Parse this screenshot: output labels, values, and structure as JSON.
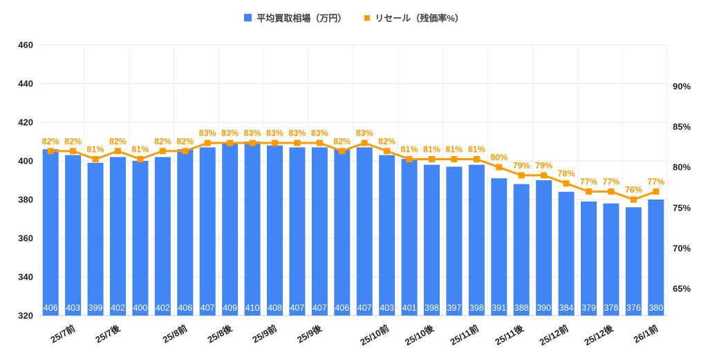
{
  "legend": {
    "bar_label": "平均買取相場（万円）",
    "line_label": "リセール（残価率%）"
  },
  "chart_data": {
    "type": "combo",
    "title": "",
    "legend_position": "top-center",
    "grid": true,
    "x_tick_labels": [
      "25/7前",
      "25/7後",
      "25/8前",
      "25/8後",
      "25/9前",
      "25/9後",
      "25/10前",
      "25/10後",
      "25/11前",
      "25/11後",
      "25/12前",
      "25/12後",
      "26/1前"
    ],
    "x_tick_bar_index": [
      2,
      4,
      7,
      9,
      11,
      13,
      16,
      18,
      20,
      22,
      24,
      26,
      28
    ],
    "series": [
      {
        "name": "平均買取相場（万円）",
        "type": "bar",
        "axis": "left",
        "color": "#4285F4",
        "values": [
          406,
          403,
          399,
          402,
          400,
          402,
          406,
          407,
          409,
          410,
          408,
          407,
          407,
          406,
          407,
          403,
          401,
          398,
          397,
          398,
          391,
          388,
          390,
          384,
          379,
          378,
          376,
          380
        ],
        "value_labels": [
          "406",
          "403",
          "399",
          "402",
          "400",
          "402",
          "406",
          "407",
          "409",
          "410",
          "408",
          "407",
          "407",
          "406",
          "407",
          "403",
          "401",
          "398",
          "397",
          "398",
          "391",
          "388",
          "390",
          "384",
          "379",
          "378",
          "376",
          "380"
        ]
      },
      {
        "name": "リセール（残価率%）",
        "type": "line",
        "axis": "right",
        "color": "#FF9900",
        "values": [
          82,
          82,
          81,
          82,
          81,
          82,
          82,
          83,
          83,
          83,
          83,
          83,
          83,
          82,
          83,
          82,
          81,
          81,
          81,
          81,
          80,
          79,
          79,
          78,
          77,
          77,
          76,
          77
        ],
        "value_labels": [
          "82%",
          "82%",
          "81%",
          "82%",
          "81%",
          "82%",
          "82%",
          "83%",
          "83%",
          "83%",
          "83%",
          "83%",
          "83%",
          "82%",
          "83%",
          "82%",
          "81%",
          "81%",
          "81%",
          "81%",
          "80%",
          "79%",
          "79%",
          "78%",
          "77%",
          "77%",
          "76%",
          "77%"
        ]
      }
    ],
    "left_axis": {
      "min": 320,
      "max": 460,
      "ticks": [
        320,
        340,
        360,
        380,
        400,
        420,
        440,
        460
      ],
      "tick_labels": [
        "320",
        "340",
        "360",
        "380",
        "400",
        "420",
        "440",
        "460"
      ]
    },
    "right_axis": {
      "ticks": [
        65,
        70,
        75,
        80,
        85,
        90
      ],
      "tick_labels": [
        "65%",
        "70%",
        "75%",
        "80%",
        "85%",
        "90%"
      ]
    },
    "colors": {
      "bar": "#4285F4",
      "line": "#FF9900",
      "marker": "#FF9900",
      "pct_label": "#FF9900",
      "bar_value_label": "#ffffff",
      "axis_text": "#1f1f1f",
      "grid_h": "#e6e6e6",
      "grid_v": "#eeeeee",
      "baseline": "#c9cbcf"
    }
  }
}
